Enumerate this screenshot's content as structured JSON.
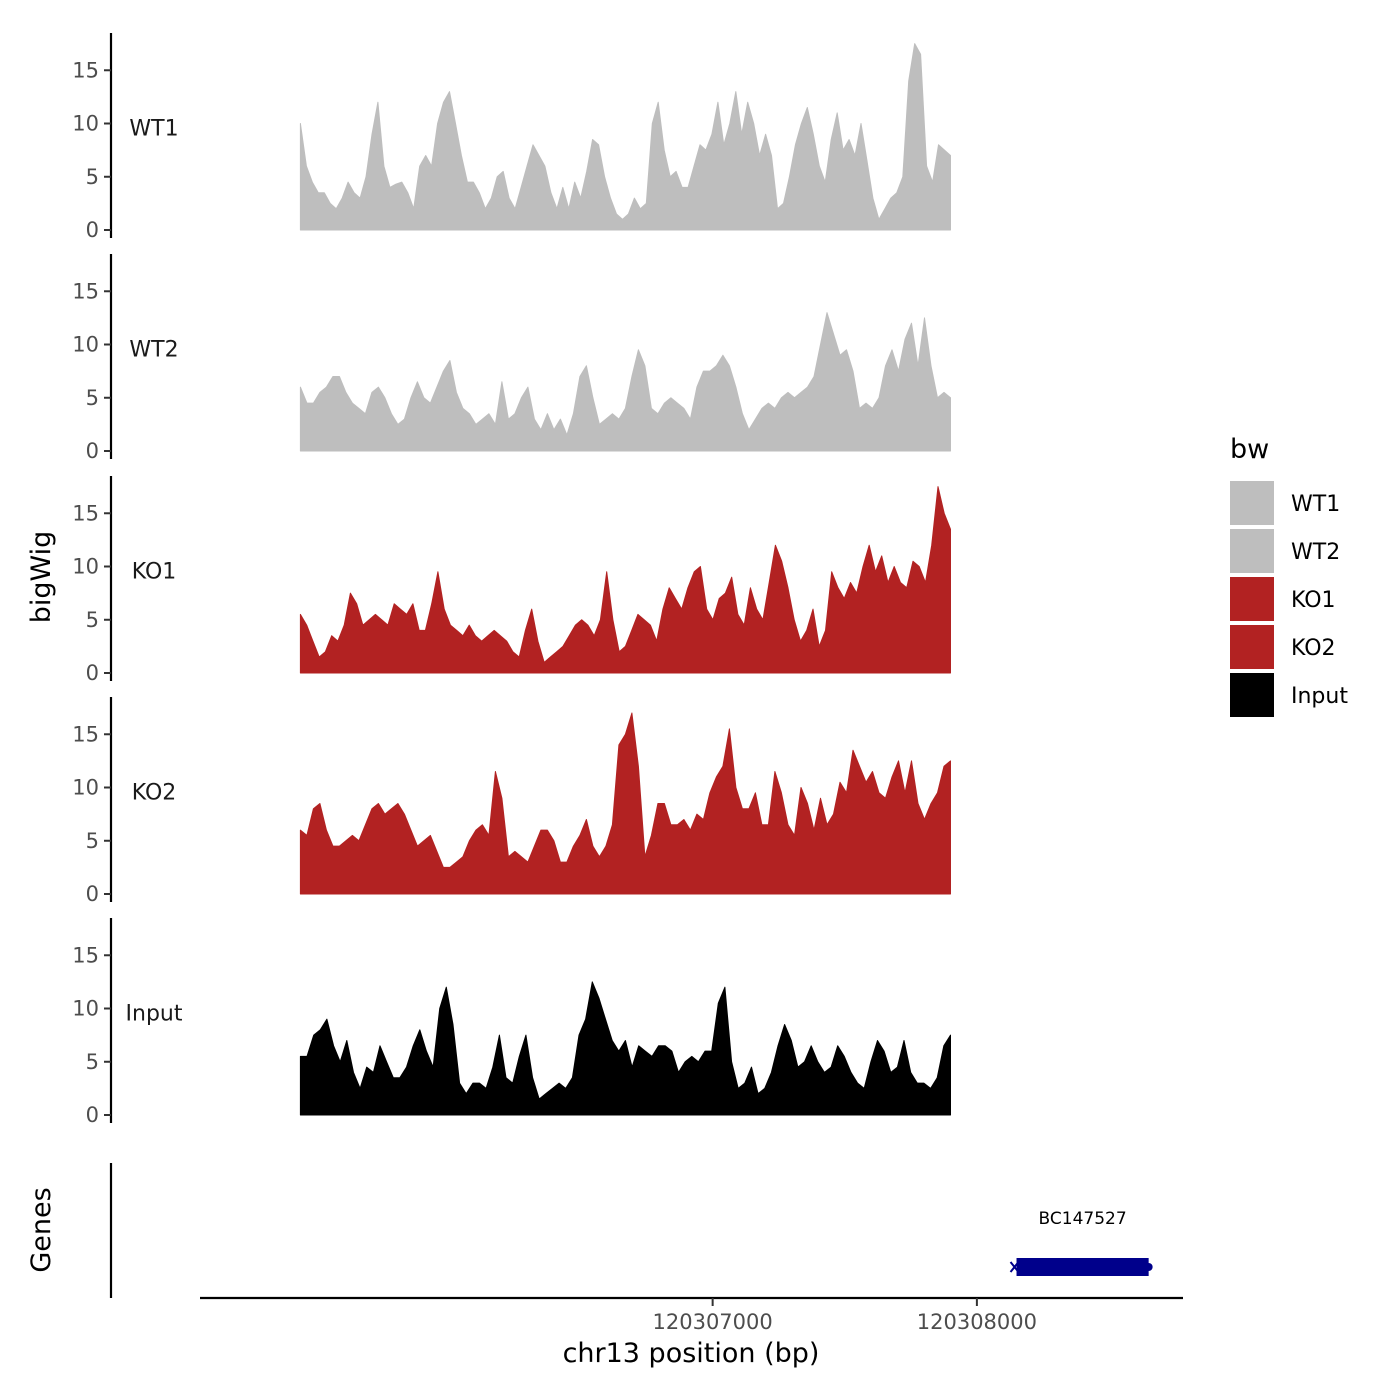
{
  "chart_data": {
    "type": "area",
    "ylabel": "bigWig",
    "xlabel": "chr13 position (bp)",
    "ylim": [
      0,
      18.5
    ],
    "yticks": [
      0,
      5,
      10,
      15
    ],
    "xlim": [
      120305060,
      120308780
    ],
    "xticks": [
      120307000,
      120308000
    ],
    "xtick_labels": [
      "120307000",
      "120308000"
    ],
    "legend": {
      "title": "bw",
      "entries": [
        {
          "label": "WT1",
          "color": "#bebebe"
        },
        {
          "label": "WT2",
          "color": "#bebebe"
        },
        {
          "label": "KO1",
          "color": "#b22222"
        },
        {
          "label": "KO2",
          "color": "#b22222"
        },
        {
          "label": "Input",
          "color": "#000000"
        }
      ]
    },
    "series": [
      {
        "name": "WT1",
        "color": "#bebebe",
        "x_start": 120305440,
        "x_end": 120307900,
        "values": [
          10.0,
          6.0,
          4.5,
          3.5,
          3.5,
          2.5,
          2.0,
          3.0,
          4.5,
          3.5,
          3.0,
          5.0,
          9.0,
          12.0,
          6.0,
          4.0,
          4.3,
          4.5,
          3.5,
          2.0,
          6.0,
          7.0,
          6.0,
          10.0,
          12.0,
          13.0,
          10.0,
          7.0,
          4.5,
          4.5,
          3.5,
          2.0,
          3.0,
          5.0,
          5.5,
          3.0,
          2.0,
          4.0,
          6.0,
          8.0,
          7.0,
          6.0,
          3.5,
          2.0,
          4.0,
          2.0,
          4.5,
          3.0,
          5.5,
          8.5,
          8.0,
          5.0,
          3.0,
          1.5,
          1.0,
          1.5,
          3.0,
          2.0,
          2.5,
          10.0,
          12.0,
          7.5,
          5.0,
          5.5,
          4.0,
          4.0,
          6.0,
          8.0,
          7.5,
          9.0,
          12.0,
          8.0,
          10.0,
          13.0,
          9.0,
          12.0,
          10.0,
          7.0,
          9.0,
          7.0,
          2.0,
          2.5,
          5.0,
          8.0,
          10.0,
          11.5,
          9.0,
          6.0,
          4.5,
          8.5,
          11.0,
          7.5,
          8.5,
          7.0,
          10.0,
          6.5,
          3.0,
          1.0,
          2.0,
          3.0,
          3.5,
          5.0,
          14.0,
          17.5,
          16.5,
          6.0,
          4.5,
          8.0,
          7.5,
          7.0
        ]
      },
      {
        "name": "WT2",
        "color": "#bebebe",
        "x_start": 120305440,
        "x_end": 120307900,
        "values": [
          6.0,
          4.5,
          4.5,
          5.5,
          6.0,
          7.0,
          7.0,
          5.5,
          4.5,
          4.0,
          3.5,
          5.5,
          6.0,
          5.0,
          3.5,
          2.5,
          3.0,
          5.0,
          6.5,
          5.0,
          4.5,
          6.0,
          7.5,
          8.5,
          5.5,
          4.0,
          3.5,
          2.5,
          3.0,
          3.5,
          2.5,
          6.5,
          3.0,
          3.5,
          5.0,
          6.0,
          3.0,
          2.0,
          3.5,
          2.0,
          3.0,
          1.5,
          3.5,
          7.0,
          8.0,
          5.0,
          2.5,
          3.0,
          3.5,
          3.0,
          4.0,
          7.0,
          9.5,
          8.0,
          4.0,
          3.5,
          4.5,
          5.0,
          4.5,
          4.0,
          3.0,
          6.0,
          7.5,
          7.5,
          8.0,
          9.0,
          8.0,
          6.0,
          3.5,
          2.0,
          3.0,
          4.0,
          4.5,
          4.0,
          5.0,
          5.5,
          5.0,
          5.5,
          6.0,
          7.0,
          10.0,
          13.0,
          11.0,
          9.0,
          9.5,
          7.5,
          4.0,
          4.5,
          4.0,
          5.0,
          8.0,
          9.5,
          7.5,
          10.5,
          12.0,
          8.0,
          12.5,
          8.0,
          5.0,
          5.5,
          5.0
        ]
      },
      {
        "name": "KO1",
        "color": "#b22222",
        "x_start": 120305440,
        "x_end": 120307900,
        "values": [
          5.5,
          4.5,
          3.0,
          1.5,
          2.0,
          3.5,
          3.0,
          4.5,
          7.5,
          6.5,
          4.5,
          5.0,
          5.5,
          5.0,
          4.5,
          6.5,
          6.0,
          5.5,
          6.5,
          4.0,
          4.0,
          6.5,
          9.5,
          6.0,
          4.5,
          4.0,
          3.5,
          4.5,
          3.5,
          3.0,
          3.5,
          4.0,
          3.5,
          3.0,
          2.0,
          1.5,
          4.0,
          6.0,
          3.0,
          1.0,
          1.5,
          2.0,
          2.5,
          3.5,
          4.5,
          5.0,
          4.5,
          3.5,
          5.0,
          9.5,
          5.0,
          2.0,
          2.5,
          4.0,
          5.5,
          5.0,
          4.5,
          3.0,
          6.0,
          8.0,
          7.0,
          6.0,
          8.0,
          9.5,
          10.0,
          6.0,
          5.0,
          7.0,
          7.5,
          9.0,
          5.5,
          4.5,
          8.0,
          6.0,
          5.0,
          8.5,
          12.0,
          10.5,
          8.0,
          5.0,
          3.0,
          4.0,
          6.0,
          2.5,
          4.0,
          9.5,
          8.0,
          7.0,
          8.5,
          7.5,
          10.0,
          12.0,
          9.5,
          11.0,
          8.5,
          10.0,
          8.5,
          8.0,
          10.5,
          10.0,
          8.5,
          12.0,
          17.5,
          15.0,
          13.5
        ]
      },
      {
        "name": "KO2",
        "color": "#b22222",
        "x_start": 120305440,
        "x_end": 120307900,
        "values": [
          6.0,
          5.5,
          8.0,
          8.5,
          6.0,
          4.5,
          4.5,
          5.0,
          5.5,
          5.0,
          6.5,
          8.0,
          8.5,
          7.5,
          8.0,
          8.5,
          7.5,
          6.0,
          4.5,
          5.0,
          5.5,
          4.0,
          2.5,
          2.5,
          3.0,
          3.5,
          5.0,
          6.0,
          6.5,
          5.5,
          11.5,
          9.0,
          3.5,
          4.0,
          3.5,
          3.0,
          4.5,
          6.0,
          6.0,
          5.0,
          3.0,
          3.0,
          4.5,
          5.5,
          7.0,
          4.5,
          3.5,
          4.5,
          6.5,
          14.0,
          15.0,
          17.0,
          12.0,
          3.5,
          5.5,
          8.5,
          8.5,
          6.5,
          6.5,
          7.0,
          6.0,
          7.5,
          7.0,
          9.5,
          11.0,
          12.0,
          15.5,
          10.0,
          8.0,
          8.0,
          9.5,
          6.5,
          6.5,
          11.5,
          9.5,
          6.5,
          5.5,
          10.0,
          8.5,
          6.0,
          9.0,
          6.5,
          7.5,
          10.5,
          9.5,
          13.5,
          12.0,
          10.5,
          11.5,
          9.5,
          9.0,
          11.0,
          12.5,
          9.5,
          12.5,
          8.5,
          7.0,
          8.5,
          9.5,
          12.0,
          12.5
        ]
      },
      {
        "name": "Input",
        "color": "#000000",
        "x_start": 120305440,
        "x_end": 120307900,
        "values": [
          5.5,
          5.5,
          7.5,
          8.0,
          9.0,
          6.5,
          5.0,
          7.0,
          4.0,
          2.5,
          4.5,
          4.0,
          6.5,
          5.0,
          3.5,
          3.5,
          4.5,
          6.5,
          8.0,
          6.0,
          4.5,
          10.0,
          12.0,
          8.5,
          3.0,
          2.0,
          3.0,
          3.0,
          2.5,
          4.5,
          7.5,
          3.5,
          3.0,
          5.5,
          7.5,
          3.5,
          1.5,
          2.0,
          2.5,
          3.0,
          2.5,
          3.5,
          7.5,
          9.0,
          12.5,
          11.0,
          9.0,
          7.0,
          6.0,
          7.0,
          4.5,
          6.5,
          6.0,
          5.5,
          6.5,
          6.5,
          6.0,
          4.0,
          5.0,
          5.5,
          5.0,
          6.0,
          6.0,
          10.5,
          12.0,
          5.0,
          2.5,
          3.0,
          4.5,
          2.0,
          2.5,
          4.0,
          6.5,
          8.5,
          7.0,
          4.5,
          5.0,
          6.5,
          5.0,
          4.0,
          4.5,
          6.5,
          5.5,
          4.0,
          3.0,
          2.5,
          5.0,
          7.0,
          6.0,
          4.0,
          4.5,
          7.0,
          4.0,
          3.0,
          3.0,
          2.5,
          3.5,
          6.5,
          7.5
        ]
      }
    ],
    "genes": {
      "label": "Genes",
      "items": [
        {
          "name": "BC147527",
          "start": 120308150,
          "end": 120308650,
          "strand": "-",
          "color": "#00008b"
        }
      ]
    }
  }
}
